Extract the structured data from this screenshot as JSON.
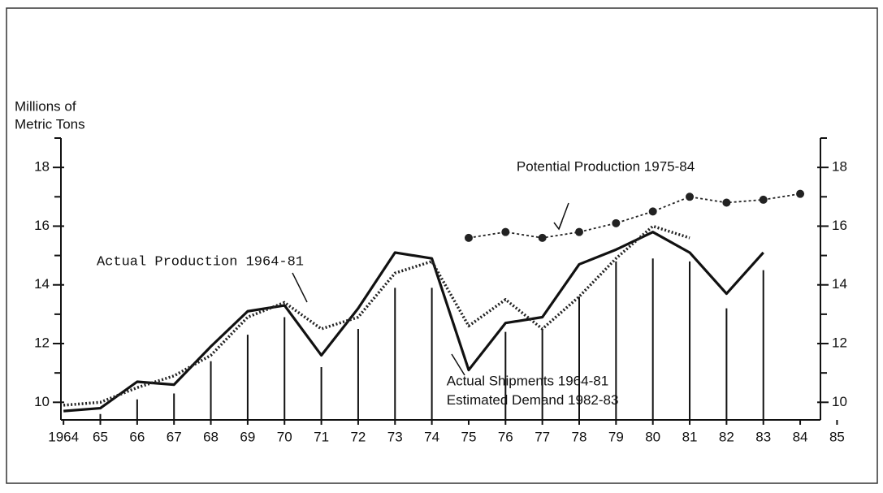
{
  "chart_data": {
    "type": "line",
    "y_label": [
      "Millions of",
      "Metric Tons"
    ],
    "xlim": [
      1963.93,
      1984.55
    ],
    "ylim": [
      9.4,
      19
    ],
    "xticks": [
      {
        "value": 1964,
        "label": "1964"
      },
      {
        "value": 1965,
        "label": "65"
      },
      {
        "value": 1966,
        "label": "66"
      },
      {
        "value": 1967,
        "label": "67"
      },
      {
        "value": 1968,
        "label": "68"
      },
      {
        "value": 1969,
        "label": "69"
      },
      {
        "value": 1970,
        "label": "70"
      },
      {
        "value": 1971,
        "label": "71"
      },
      {
        "value": 1972,
        "label": "72"
      },
      {
        "value": 1973,
        "label": "73"
      },
      {
        "value": 1974,
        "label": "74"
      },
      {
        "value": 1975,
        "label": "75"
      },
      {
        "value": 1976,
        "label": "76"
      },
      {
        "value": 1977,
        "label": "77"
      },
      {
        "value": 1978,
        "label": "78"
      },
      {
        "value": 1979,
        "label": "79"
      },
      {
        "value": 1980,
        "label": "80"
      },
      {
        "value": 1981,
        "label": "81"
      },
      {
        "value": 1982,
        "label": "82"
      },
      {
        "value": 1983,
        "label": "83"
      },
      {
        "value": 1984,
        "label": "84"
      },
      {
        "value": 1985,
        "label": "85"
      }
    ],
    "yticks": [
      10,
      12,
      14,
      16,
      18
    ],
    "yticks_minor": [
      11,
      13,
      15,
      17,
      19
    ],
    "mirror_y_axis": true,
    "series": [
      {
        "name": "Actual Shipments 1964-81 / Estimated Demand 1982-83",
        "style": "solid",
        "color": "#111",
        "x": [
          1964,
          1965,
          1966,
          1967,
          1968,
          1969,
          1970,
          1971,
          1972,
          1973,
          1974,
          1975,
          1976,
          1977,
          1978,
          1979,
          1980,
          1981,
          1982,
          1983
        ],
        "values": [
          9.7,
          9.8,
          10.7,
          10.6,
          11.9,
          13.1,
          13.3,
          11.6,
          13.2,
          15.1,
          14.9,
          11.1,
          12.7,
          12.9,
          14.7,
          15.2,
          15.8,
          15.1,
          13.7,
          15.1
        ]
      },
      {
        "name": "Actual Production 1964-81",
        "style": "dotted",
        "color": "#222",
        "x": [
          1964,
          1965,
          1966,
          1967,
          1968,
          1969,
          1970,
          1971,
          1972,
          1973,
          1974,
          1975,
          1976,
          1977,
          1978,
          1979,
          1980,
          1981
        ],
        "values": [
          9.9,
          10.0,
          10.5,
          10.9,
          11.6,
          12.9,
          13.4,
          12.5,
          12.9,
          14.4,
          14.8,
          12.6,
          13.5,
          12.5,
          13.6,
          14.9,
          16.0,
          15.6
        ]
      },
      {
        "name": "Potential Production 1975-84",
        "style": "markers",
        "color": "#222",
        "x": [
          1975,
          1976,
          1977,
          1978,
          1979,
          1980,
          1981,
          1982,
          1983,
          1984
        ],
        "values": [
          15.6,
          15.8,
          15.6,
          15.8,
          16.1,
          16.5,
          17.0,
          16.8,
          16.9,
          17.1
        ]
      }
    ],
    "vertical_lines": {
      "x": [
        1965,
        1966,
        1967,
        1968,
        1969,
        1970,
        1971,
        1972,
        1973,
        1974,
        1976,
        1977,
        1978,
        1979,
        1980,
        1981,
        1982,
        1983
      ],
      "values": [
        9.6,
        10.1,
        10.3,
        11.4,
        12.3,
        12.9,
        11.2,
        12.5,
        13.9,
        13.9,
        12.4,
        12.5,
        13.6,
        14.8,
        14.9,
        14.8,
        13.2,
        14.5
      ]
    },
    "annotations": [
      {
        "text": "Potential Production 1975-84",
        "x": 1976.3,
        "y": 18.0,
        "font": "sans"
      },
      {
        "text": "Actual Production 1964-81",
        "x": 1964.9,
        "y": 14.8,
        "font": "mono"
      },
      {
        "text": "Actual Shipments 1964-81",
        "x": 1974.4,
        "y": 10.7,
        "font": "sans"
      },
      {
        "text": "Estimated Demand 1982-83",
        "x": 1974.4,
        "y": 10.05,
        "font": "sans"
      }
    ]
  }
}
